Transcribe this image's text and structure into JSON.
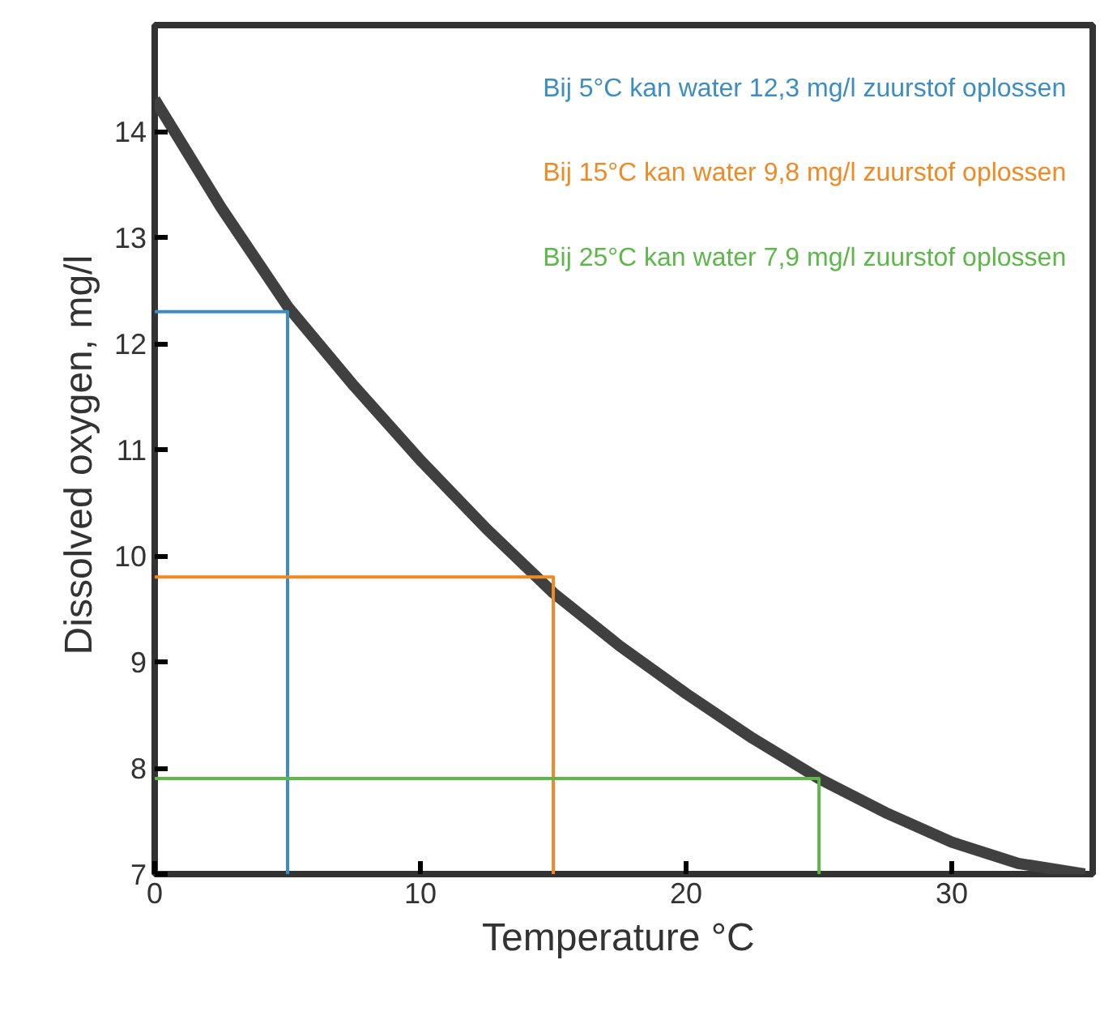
{
  "chart_data": {
    "type": "line",
    "xlabel": "Temperature  °C",
    "ylabel": "Dissolved oxygen,  mg/l",
    "xlim": [
      0,
      35.3
    ],
    "ylim": [
      7,
      15
    ],
    "xticks": [
      0,
      10,
      20,
      30
    ],
    "yticks": [
      7,
      8,
      9,
      10,
      11,
      12,
      13,
      14
    ],
    "grid": false,
    "marker": "none",
    "series": [
      {
        "color": "#404040",
        "x": [
          0,
          2.5,
          5,
          7.5,
          10,
          12.5,
          15,
          17.5,
          20,
          22.5,
          25,
          27.5,
          30,
          32.5,
          35
        ],
        "values": [
          14.3,
          13.28,
          12.35,
          11.6,
          10.9,
          10.25,
          9.65,
          9.15,
          8.7,
          8.28,
          7.9,
          7.58,
          7.3,
          7.1,
          7.0
        ]
      },
      {
        "color": "#3c8dc4",
        "x": [
          0,
          5,
          5
        ],
        "values": [
          12.3,
          12.3,
          7
        ]
      },
      {
        "color": "#f08a24",
        "x": [
          0,
          15,
          15
        ],
        "values": [
          9.8,
          9.8,
          7
        ]
      },
      {
        "color": "#5cb848",
        "x": [
          0,
          25,
          25
        ],
        "values": [
          7.9,
          7.9,
          7
        ]
      }
    ],
    "annotations": [
      "Bij 5°C kan water 12,3 mg/l zuurstof oplossen",
      "Bij 15°C kan water 9,8 mg/l zuurstof oplossen",
      "Bij 25°C kan water 7,9 mg/l zuurstof oplossen"
    ]
  }
}
